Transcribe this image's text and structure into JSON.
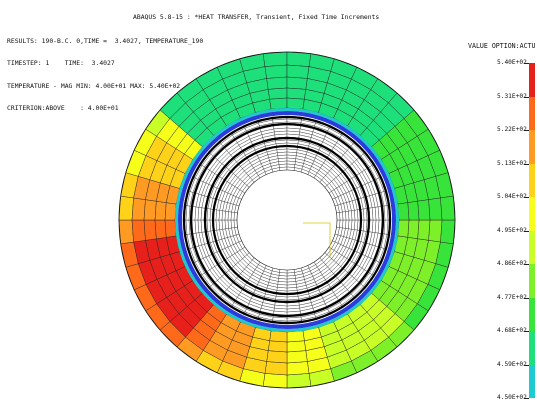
{
  "window": {
    "title": "ABAQUS 5.8-15 : *HEAT TRANSFER, Transient, Fixed Time Increments"
  },
  "results_info": {
    "line1": "RESULTS: 190-B.C. 0,TIME =  3.4027, TEMPERATURE_190",
    "line2": "TIMESTEP: 1    TIME:  3.4027",
    "line3": "TEMPERATURE - MAG MIN: 4.00E+01 MAX: 5.40E+02",
    "line4": "CRITERION:ABOVE    : 4.00E+01"
  },
  "legend": {
    "title": "VALUE OPTION:ACTU",
    "values": [
      "5.40E+02",
      "5.31E+02",
      "5.22E+02",
      "5.13E+02",
      "5.04E+02",
      "4.95E+02",
      "4.86E+02",
      "4.77E+02",
      "4.68E+02",
      "4.59E+02",
      "4.50E+02"
    ],
    "colors": [
      "#e8201c",
      "#ff6a1a",
      "#ff9a22",
      "#ffd21a",
      "#f6ff1a",
      "#c8ff26",
      "#7ef02a",
      "#38e43a",
      "#1ee07a",
      "#1ecbd0",
      "#2650ff"
    ]
  },
  "model": {
    "part": "annular cross-section",
    "element_rings": 10,
    "sectors": 44,
    "outer_band_color": "#20c8c8",
    "inner_band_color": "#2a3cdc"
  }
}
